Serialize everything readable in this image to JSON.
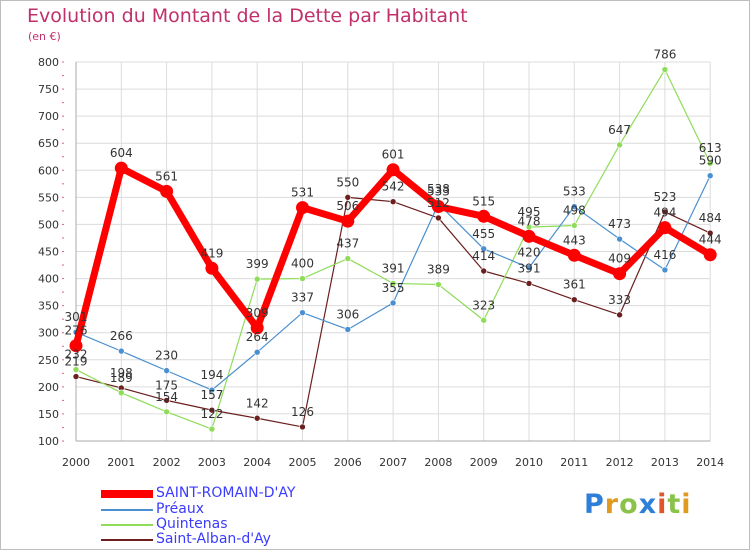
{
  "chart_data": {
    "type": "line",
    "title": "Evolution du Montant de la Dette par Habitant",
    "subtitle": "(en €)",
    "categories": [
      "2000",
      "2001",
      "2002",
      "2003",
      "2004",
      "2005",
      "2006",
      "2007",
      "2008",
      "2009",
      "2010",
      "2011",
      "2012",
      "2013",
      "2014"
    ],
    "ylim": [
      100,
      800
    ],
    "yticks": [
      100,
      150,
      200,
      250,
      300,
      350,
      400,
      450,
      500,
      550,
      600,
      650,
      700,
      750,
      800
    ],
    "grid": true,
    "legend_position": "bottom-left",
    "series": [
      {
        "name": "SAINT-ROMAIN-D'AY",
        "color": "#ff0000",
        "values": [
          276,
          604,
          561,
          419,
          309,
          531,
          506,
          601,
          533,
          515,
          478,
          443,
          409,
          494,
          444
        ],
        "labels": [
          "276",
          "604",
          "561",
          "419",
          "309",
          "531",
          "506",
          "601",
          "533",
          "515",
          "478",
          "443",
          "409",
          "494",
          "444"
        ]
      },
      {
        "name": "Préaux",
        "color": "#4a8fd0",
        "values": [
          301,
          266,
          230,
          194,
          264,
          337,
          306,
          355,
          538,
          455,
          420,
          533,
          473,
          416,
          590
        ],
        "labels": [
          "301",
          "266",
          "230",
          "194",
          "264",
          "337",
          "306",
          "355",
          "538",
          "455",
          "420",
          "533",
          "473",
          "416",
          "590"
        ]
      },
      {
        "name": "Quintenas",
        "color": "#8fdc5a",
        "values": [
          232,
          189,
          154,
          122,
          399,
          400,
          437,
          391,
          389,
          323,
          495,
          498,
          647,
          786,
          613
        ],
        "labels": [
          "232",
          "189",
          "154",
          "122",
          "399",
          "400",
          "437",
          "391",
          "389",
          "323",
          "495",
          "498",
          "647",
          "786",
          "613"
        ]
      },
      {
        "name": "Saint-Alban-d'Ay",
        "color": "#6b1f1f",
        "values": [
          219,
          198,
          175,
          157,
          142,
          126,
          550,
          542,
          512,
          414,
          391,
          361,
          333,
          523,
          484
        ],
        "labels": [
          "219",
          "198",
          "175",
          "157",
          "142",
          "126",
          "550",
          "542",
          "512",
          "414",
          "391",
          "361",
          "333",
          "523",
          "484"
        ]
      }
    ]
  },
  "brand": {
    "letters": [
      "P",
      "r",
      "o",
      "x",
      "i",
      "t",
      "i"
    ],
    "colors": [
      "#2f7fd8",
      "#e09a20",
      "#8bc34a",
      "#2f7fd8",
      "#e0562a",
      "#8bc34a",
      "#e09a20"
    ]
  }
}
